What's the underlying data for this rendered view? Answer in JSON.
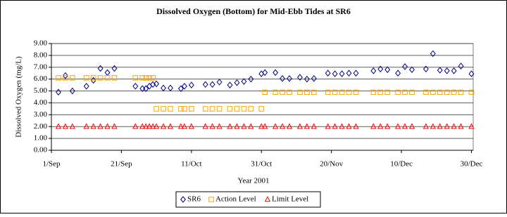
{
  "chart_data": {
    "type": "scatter",
    "title": "Dissolved Oxygen (Bottom) for Mid-Ebb Tides at SR6",
    "x_label": "Year 2001",
    "y_label": "Dissolved Oxygen (mg/L)",
    "x": [
      2,
      4,
      6,
      10,
      12,
      14,
      16,
      18,
      24,
      26,
      27,
      28,
      29,
      30,
      32,
      34,
      37,
      38,
      40,
      44,
      46,
      48,
      51,
      53,
      55,
      57,
      60,
      61,
      64,
      66,
      68,
      71,
      73,
      75,
      79,
      81,
      83,
      85,
      87,
      92,
      94,
      96,
      99,
      101,
      103,
      107,
      109,
      111,
      113,
      115,
      117,
      120
    ],
    "series": [
      {
        "name": "SR6",
        "color": "#000080",
        "marker": "diamond",
        "values": [
          4.9,
          6.3,
          5.0,
          5.4,
          5.9,
          6.9,
          6.55,
          6.9,
          5.4,
          5.2,
          5.2,
          5.4,
          5.55,
          5.6,
          5.25,
          5.25,
          5.2,
          5.4,
          5.5,
          5.55,
          5.55,
          5.75,
          5.5,
          5.7,
          5.8,
          6.0,
          6.45,
          6.55,
          6.55,
          6.05,
          6.05,
          6.15,
          6.0,
          6.05,
          6.5,
          6.45,
          6.45,
          6.5,
          6.5,
          6.7,
          6.85,
          6.8,
          6.5,
          7.05,
          6.8,
          6.85,
          8.15,
          6.75,
          6.7,
          6.7,
          7.1,
          6.45
        ]
      },
      {
        "name": "Action Level",
        "color": "#ffa500",
        "marker": "square",
        "values": [
          6.1,
          6.1,
          6.1,
          6.1,
          6.1,
          6.1,
          6.1,
          6.1,
          6.1,
          6.1,
          6.1,
          6.1,
          6.1,
          3.5,
          3.5,
          3.5,
          3.5,
          3.5,
          3.5,
          3.5,
          3.5,
          3.5,
          3.5,
          3.5,
          3.5,
          3.5,
          3.5,
          4.9,
          4.9,
          4.9,
          4.9,
          4.9,
          4.9,
          4.9,
          4.9,
          4.9,
          4.9,
          4.9,
          4.9,
          4.9,
          4.9,
          4.9,
          4.9,
          4.9,
          4.9,
          4.9,
          4.9,
          4.9,
          4.9,
          4.9,
          4.9,
          4.9
        ]
      },
      {
        "name": "Limit Level",
        "color": "#ff0000",
        "marker": "triangle",
        "values": [
          2,
          2,
          2,
          2,
          2,
          2,
          2,
          2,
          2,
          2,
          2,
          2,
          2,
          2,
          2,
          2,
          2,
          2,
          2,
          2,
          2,
          2,
          2,
          2,
          2,
          2,
          2,
          2,
          2,
          2,
          2,
          2,
          2,
          2,
          2,
          2,
          2,
          2,
          2,
          2,
          2,
          2,
          2,
          2,
          2,
          2,
          2,
          2,
          2,
          2,
          2,
          2
        ]
      }
    ],
    "xlim": [
      0,
      120.5
    ],
    "xticks": [
      {
        "value": 0,
        "label": "1/Sep"
      },
      {
        "value": 20,
        "label": "21/Sep"
      },
      {
        "value": 40,
        "label": "11/Oct"
      },
      {
        "value": 60,
        "label": "31/Oct"
      },
      {
        "value": 80,
        "label": "20/Nov"
      },
      {
        "value": 100,
        "label": "10/Dec"
      },
      {
        "value": 120,
        "label": "30/Dec"
      }
    ],
    "ylim": [
      0,
      9
    ],
    "yticks": [
      {
        "value": 0,
        "label": "0.00"
      },
      {
        "value": 1,
        "label": "1.00"
      },
      {
        "value": 2,
        "label": "2.00"
      },
      {
        "value": 3,
        "label": "3.00"
      },
      {
        "value": 4,
        "label": "4.00"
      },
      {
        "value": 5,
        "label": "5.00"
      },
      {
        "value": 6,
        "label": "6.00"
      },
      {
        "value": 7,
        "label": "7.00"
      },
      {
        "value": 8,
        "label": "8.00"
      },
      {
        "value": 9,
        "label": "9.00"
      }
    ],
    "grid": true,
    "legend": "bottom"
  }
}
